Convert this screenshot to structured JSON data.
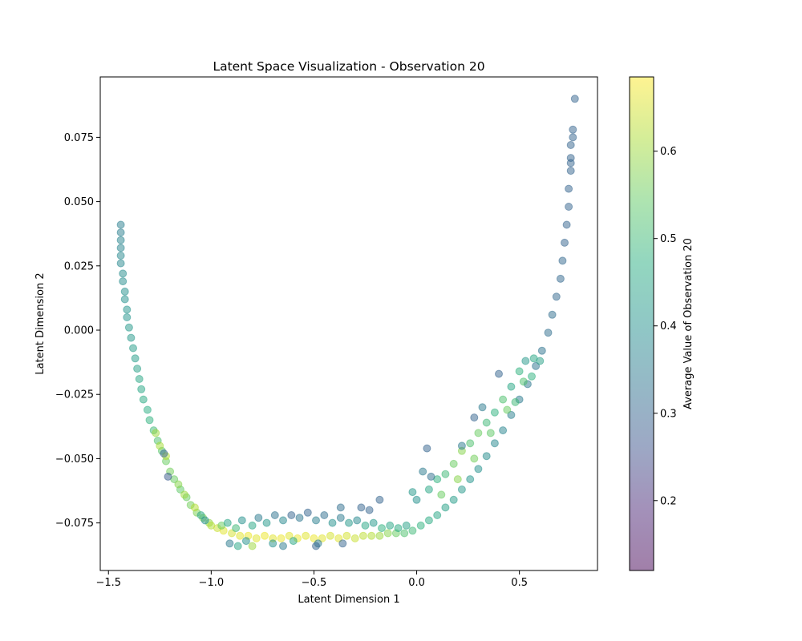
{
  "chart_data": {
    "type": "scatter",
    "title": "Latent Space Visualization - Observation 20",
    "xlabel": "Latent Dimension 1",
    "ylabel": "Latent Dimension 2",
    "xlim": [
      -1.54,
      0.88
    ],
    "ylim": [
      -0.0935,
      0.0985
    ],
    "xticks": [
      {
        "value": -1.5,
        "label": "−1.5"
      },
      {
        "value": -1.0,
        "label": "−1.0"
      },
      {
        "value": -0.5,
        "label": "−0.5"
      },
      {
        "value": 0.0,
        "label": "0.0"
      },
      {
        "value": 0.5,
        "label": "0.5"
      }
    ],
    "yticks": [
      {
        "value": -0.075,
        "label": "−0.075"
      },
      {
        "value": -0.05,
        "label": "−0.050"
      },
      {
        "value": -0.025,
        "label": "−0.025"
      },
      {
        "value": 0.0,
        "label": "0.000"
      },
      {
        "value": 0.025,
        "label": "0.025"
      },
      {
        "value": 0.05,
        "label": "0.050"
      },
      {
        "value": 0.075,
        "label": "0.075"
      }
    ],
    "grid": false,
    "marker_alpha": 0.5,
    "colorbar": {
      "label": "Average Value of Observation 20",
      "colormap": "viridis",
      "range": [
        0.12,
        0.685
      ],
      "ticks": [
        {
          "value": 0.2,
          "label": "0.2"
        },
        {
          "value": 0.3,
          "label": "0.3"
        },
        {
          "value": 0.4,
          "label": "0.4"
        },
        {
          "value": 0.5,
          "label": "0.5"
        },
        {
          "value": 0.6,
          "label": "0.6"
        }
      ]
    },
    "series": [
      {
        "points": [
          [
            -1.44,
            0.041,
            0.36
          ],
          [
            -1.44,
            0.038,
            0.36
          ],
          [
            -1.44,
            0.035,
            0.37
          ],
          [
            -1.44,
            0.032,
            0.37
          ],
          [
            -1.44,
            0.029,
            0.38
          ],
          [
            -1.44,
            0.026,
            0.38
          ],
          [
            -1.43,
            0.022,
            0.39
          ],
          [
            -1.43,
            0.019,
            0.39
          ],
          [
            -1.42,
            0.015,
            0.4
          ],
          [
            -1.42,
            0.012,
            0.4
          ],
          [
            -1.41,
            0.008,
            0.41
          ],
          [
            -1.41,
            0.005,
            0.41
          ],
          [
            -1.4,
            0.001,
            0.42
          ],
          [
            -1.39,
            -0.003,
            0.42
          ],
          [
            -1.38,
            -0.007,
            0.43
          ],
          [
            -1.37,
            -0.011,
            0.43
          ],
          [
            -1.36,
            -0.015,
            0.44
          ],
          [
            -1.35,
            -0.019,
            0.45
          ],
          [
            -1.34,
            -0.023,
            0.45
          ],
          [
            -1.33,
            -0.027,
            0.46
          ],
          [
            -1.31,
            -0.031,
            0.47
          ],
          [
            -1.3,
            -0.035,
            0.48
          ],
          [
            -1.28,
            -0.039,
            0.5
          ],
          [
            -1.26,
            -0.043,
            0.52
          ],
          [
            -1.24,
            -0.047,
            0.53
          ],
          [
            -1.22,
            -0.051,
            0.55
          ],
          [
            -1.2,
            -0.055,
            0.56
          ],
          [
            -1.18,
            -0.058,
            0.55
          ],
          [
            -1.15,
            -0.062,
            0.54
          ],
          [
            -1.12,
            -0.065,
            0.55
          ],
          [
            -1.1,
            -0.068,
            0.56
          ],
          [
            -1.07,
            -0.071,
            0.57
          ],
          [
            -1.04,
            -0.073,
            0.58
          ],
          [
            -1.01,
            -0.075,
            0.59
          ],
          [
            -1.27,
            -0.04,
            0.6
          ],
          [
            -1.25,
            -0.045,
            0.61
          ],
          [
            -1.22,
            -0.049,
            0.62
          ],
          [
            -1.21,
            -0.057,
            0.28
          ],
          [
            -1.23,
            -0.048,
            0.3
          ],
          [
            -1.16,
            -0.06,
            0.58
          ],
          [
            -1.13,
            -0.064,
            0.6
          ],
          [
            -1.08,
            -0.069,
            0.62
          ],
          [
            -1.05,
            -0.072,
            0.45
          ],
          [
            -1.03,
            -0.074,
            0.4
          ],
          [
            -1.0,
            -0.076,
            0.62
          ],
          [
            -0.97,
            -0.077,
            0.64
          ],
          [
            -0.94,
            -0.078,
            0.66
          ],
          [
            -0.9,
            -0.079,
            0.65
          ],
          [
            -0.86,
            -0.08,
            0.66
          ],
          [
            -0.82,
            -0.08,
            0.67
          ],
          [
            -0.78,
            -0.081,
            0.66
          ],
          [
            -0.74,
            -0.08,
            0.67
          ],
          [
            -0.7,
            -0.081,
            0.66
          ],
          [
            -0.66,
            -0.081,
            0.67
          ],
          [
            -0.62,
            -0.08,
            0.66
          ],
          [
            -0.58,
            -0.081,
            0.67
          ],
          [
            -0.54,
            -0.08,
            0.66
          ],
          [
            -0.5,
            -0.081,
            0.67
          ],
          [
            -0.46,
            -0.081,
            0.66
          ],
          [
            -0.42,
            -0.08,
            0.65
          ],
          [
            -0.38,
            -0.081,
            0.66
          ],
          [
            -0.34,
            -0.08,
            0.65
          ],
          [
            -0.3,
            -0.081,
            0.64
          ],
          [
            -0.26,
            -0.08,
            0.63
          ],
          [
            -0.22,
            -0.08,
            0.62
          ],
          [
            -0.18,
            -0.08,
            0.6
          ],
          [
            -0.14,
            -0.079,
            0.58
          ],
          [
            -0.1,
            -0.079,
            0.55
          ],
          [
            -0.06,
            -0.079,
            0.52
          ],
          [
            -0.02,
            -0.078,
            0.5
          ],
          [
            -0.95,
            -0.076,
            0.55
          ],
          [
            -0.92,
            -0.075,
            0.45
          ],
          [
            -0.88,
            -0.077,
            0.5
          ],
          [
            -0.85,
            -0.074,
            0.4
          ],
          [
            -0.8,
            -0.076,
            0.45
          ],
          [
            -0.77,
            -0.073,
            0.35
          ],
          [
            -0.73,
            -0.075,
            0.42
          ],
          [
            -0.69,
            -0.072,
            0.33
          ],
          [
            -0.65,
            -0.074,
            0.38
          ],
          [
            -0.61,
            -0.072,
            0.3
          ],
          [
            -0.57,
            -0.073,
            0.34
          ],
          [
            -0.53,
            -0.071,
            0.3
          ],
          [
            -0.49,
            -0.074,
            0.36
          ],
          [
            -0.45,
            -0.072,
            0.32
          ],
          [
            -0.41,
            -0.075,
            0.4
          ],
          [
            -0.37,
            -0.073,
            0.35
          ],
          [
            -0.33,
            -0.075,
            0.42
          ],
          [
            -0.29,
            -0.074,
            0.38
          ],
          [
            -0.25,
            -0.076,
            0.45
          ],
          [
            -0.21,
            -0.075,
            0.42
          ],
          [
            -0.17,
            -0.077,
            0.48
          ],
          [
            -0.13,
            -0.076,
            0.45
          ],
          [
            -0.09,
            -0.077,
            0.46
          ],
          [
            -0.05,
            -0.076,
            0.44
          ],
          [
            -0.91,
            -0.083,
            0.35
          ],
          [
            -0.83,
            -0.082,
            0.4
          ],
          [
            -0.87,
            -0.084,
            0.45
          ],
          [
            -0.8,
            -0.084,
            0.6
          ],
          [
            -0.7,
            -0.083,
            0.4
          ],
          [
            -0.6,
            -0.082,
            0.45
          ],
          [
            -0.48,
            -0.083,
            0.35
          ],
          [
            -0.36,
            -0.083,
            0.3
          ],
          [
            -0.27,
            -0.069,
            0.3
          ],
          [
            -0.23,
            -0.07,
            0.3
          ],
          [
            -0.18,
            -0.066,
            0.3
          ],
          [
            -0.37,
            -0.069,
            0.32
          ],
          [
            -0.49,
            -0.084,
            0.3
          ],
          [
            -0.65,
            -0.084,
            0.35
          ],
          [
            0.02,
            -0.076,
            0.48
          ],
          [
            0.06,
            -0.074,
            0.46
          ],
          [
            0.1,
            -0.072,
            0.45
          ],
          [
            0.14,
            -0.069,
            0.44
          ],
          [
            0.18,
            -0.066,
            0.43
          ],
          [
            0.22,
            -0.062,
            0.42
          ],
          [
            0.26,
            -0.058,
            0.41
          ],
          [
            0.3,
            -0.054,
            0.4
          ],
          [
            0.34,
            -0.049,
            0.39
          ],
          [
            0.38,
            -0.044,
            0.38
          ],
          [
            0.42,
            -0.039,
            0.37
          ],
          [
            0.46,
            -0.033,
            0.36
          ],
          [
            0.5,
            -0.027,
            0.35
          ],
          [
            0.54,
            -0.021,
            0.34
          ],
          [
            0.58,
            -0.014,
            0.33
          ],
          [
            0.61,
            -0.008,
            0.33
          ],
          [
            0.64,
            -0.001,
            0.32
          ],
          [
            0.66,
            0.006,
            0.32
          ],
          [
            0.68,
            0.013,
            0.31
          ],
          [
            0.7,
            0.02,
            0.31
          ],
          [
            0.71,
            0.027,
            0.31
          ],
          [
            0.72,
            0.034,
            0.3
          ],
          [
            0.73,
            0.041,
            0.3
          ],
          [
            0.74,
            0.048,
            0.3
          ],
          [
            0.74,
            0.055,
            0.3
          ],
          [
            0.75,
            0.062,
            0.3
          ],
          [
            0.76,
            0.075,
            0.3
          ],
          [
            0.76,
            0.078,
            0.3
          ],
          [
            0.77,
            0.09,
            0.3
          ],
          [
            0.75,
            0.072,
            0.3
          ],
          [
            0.75,
            0.067,
            0.3
          ],
          [
            0.75,
            0.065,
            0.3
          ],
          [
            0.06,
            -0.062,
            0.45
          ],
          [
            0.1,
            -0.058,
            0.48
          ],
          [
            0.14,
            -0.056,
            0.5
          ],
          [
            0.18,
            -0.052,
            0.55
          ],
          [
            0.22,
            -0.047,
            0.58
          ],
          [
            0.26,
            -0.044,
            0.52
          ],
          [
            0.3,
            -0.04,
            0.55
          ],
          [
            0.34,
            -0.036,
            0.5
          ],
          [
            0.38,
            -0.032,
            0.48
          ],
          [
            0.42,
            -0.027,
            0.52
          ],
          [
            0.46,
            -0.022,
            0.45
          ],
          [
            0.5,
            -0.016,
            0.48
          ],
          [
            0.53,
            -0.012,
            0.42
          ],
          [
            0.57,
            -0.011,
            0.45
          ],
          [
            0.4,
            -0.017,
            0.3
          ],
          [
            0.32,
            -0.03,
            0.35
          ],
          [
            0.28,
            -0.034,
            0.3
          ],
          [
            0.22,
            -0.045,
            0.35
          ],
          [
            0.05,
            -0.046,
            0.3
          ],
          [
            0.03,
            -0.055,
            0.35
          ],
          [
            0.07,
            -0.057,
            0.32
          ],
          [
            0.0,
            -0.066,
            0.4
          ],
          [
            -0.02,
            -0.063,
            0.42
          ],
          [
            0.12,
            -0.064,
            0.55
          ],
          [
            0.2,
            -0.058,
            0.58
          ],
          [
            0.28,
            -0.05,
            0.56
          ],
          [
            0.36,
            -0.04,
            0.54
          ],
          [
            0.44,
            -0.031,
            0.55
          ],
          [
            0.48,
            -0.028,
            0.5
          ],
          [
            0.52,
            -0.02,
            0.52
          ],
          [
            0.56,
            -0.018,
            0.48
          ],
          [
            0.6,
            -0.012,
            0.44
          ]
        ]
      }
    ]
  }
}
